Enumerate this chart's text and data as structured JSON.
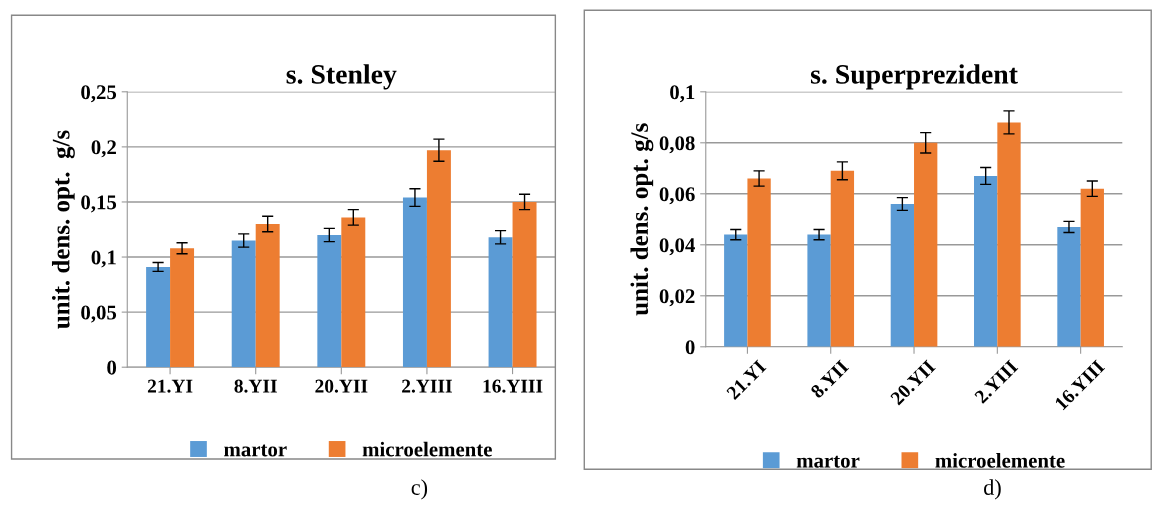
{
  "chart_data": [
    {
      "type": "bar",
      "title": "s. Stenley",
      "ylabel": "unit. dens. opt.  g/s",
      "categories": [
        "21.YI",
        "8.YII",
        "20.YII",
        "2.YIII",
        "16.YIII"
      ],
      "series": [
        {
          "name": "martor",
          "color": "#5b9bd5",
          "values": [
            0.091,
            0.115,
            0.12,
            0.154,
            0.118
          ],
          "errors": [
            0.004,
            0.006,
            0.006,
            0.008,
            0.006
          ]
        },
        {
          "name": "microelemente",
          "color": "#ed7d31",
          "values": [
            0.108,
            0.13,
            0.136,
            0.197,
            0.15
          ],
          "errors": [
            0.005,
            0.007,
            0.007,
            0.01,
            0.007
          ]
        }
      ],
      "ylim": [
        0,
        0.25
      ],
      "yticks": [
        {
          "value": 0,
          "label": "0"
        },
        {
          "value": 0.05,
          "label": "0,05"
        },
        {
          "value": 0.1,
          "label": "0,1"
        },
        {
          "value": 0.15,
          "label": "0,15"
        },
        {
          "value": 0.2,
          "label": "0,2"
        },
        {
          "value": 0.25,
          "label": "0,25"
        }
      ],
      "grid": "y",
      "legend": "bottom",
      "annotations": [
        "c)"
      ]
    },
    {
      "type": "bar",
      "title": "s. Superprezident",
      "ylabel": "unit. dens. opt. g/s",
      "categories": [
        "21.YI",
        "8.YII",
        "20.YII",
        "2.YIII",
        "16.YIII"
      ],
      "series": [
        {
          "name": "martor",
          "color": "#5b9bd5",
          "values": [
            0.044,
            0.044,
            0.056,
            0.067,
            0.047
          ],
          "errors": [
            0.002,
            0.002,
            0.0025,
            0.0033,
            0.0022
          ]
        },
        {
          "name": "microelemente",
          "color": "#ed7d31",
          "values": [
            0.066,
            0.069,
            0.08,
            0.088,
            0.062
          ],
          "errors": [
            0.003,
            0.0035,
            0.004,
            0.0045,
            0.003
          ]
        }
      ],
      "ylim": [
        0,
        0.1
      ],
      "yticks": [
        {
          "value": 0,
          "label": "0"
        },
        {
          "value": 0.02,
          "label": "0,02"
        },
        {
          "value": 0.04,
          "label": "0,04"
        },
        {
          "value": 0.06,
          "label": "0,06"
        },
        {
          "value": 0.08,
          "label": "0,08"
        },
        {
          "value": 0.1,
          "label": "0,1"
        }
      ],
      "grid": "y",
      "legend": "bottom",
      "annotations": [
        "d)"
      ]
    }
  ]
}
